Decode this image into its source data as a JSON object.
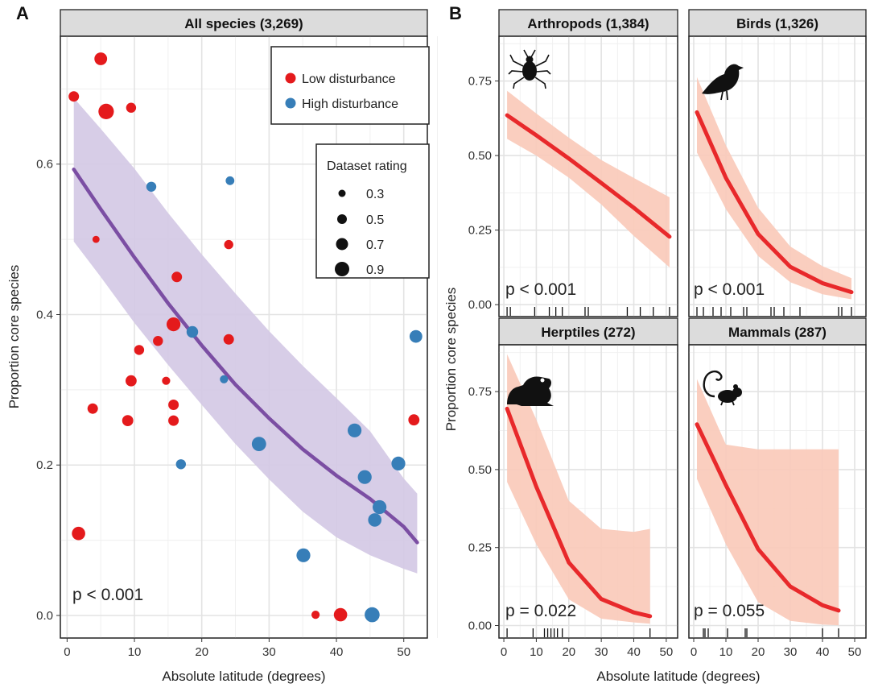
{
  "panel_labels": {
    "a": "A",
    "b": "B"
  },
  "y_axis_title": "Proportion core species",
  "x_axis_title": "Absolute latitude (degrees)",
  "colors": {
    "low": "#e41a1c",
    "high": "#377eb8",
    "fitA": "#7b4ea3",
    "ribbonA": "#d3c8e4",
    "fitB": "#e8292b",
    "ribbonB": "#f9c9b8"
  },
  "legend_color": {
    "items": [
      {
        "label": "Low disturbance",
        "color": "#e41a1c"
      },
      {
        "label": "High disturbance",
        "color": "#377eb8"
      }
    ]
  },
  "legend_size": {
    "title": "Dataset rating",
    "items": [
      {
        "label": "0.3"
      },
      {
        "label": "0.5"
      },
      {
        "label": "0.7"
      },
      {
        "label": "0.9"
      }
    ]
  },
  "chart_data": [
    {
      "type": "scatter",
      "panel": "A",
      "title": "All species (3,269)",
      "xlabel": "Absolute latitude (degrees)",
      "ylabel": "Proportion core species",
      "xlim": [
        -1,
        53.5
      ],
      "ylim": [
        -0.03,
        0.77
      ],
      "xticks": [
        "0",
        "10",
        "20",
        "30",
        "40",
        "50"
      ],
      "yticks": [
        "0.0",
        "0.2",
        "0.4",
        "0.6"
      ],
      "p_label": "p < 0.001",
      "grid": true,
      "legend_position": "top-right",
      "points": [
        {
          "x": 1.0,
          "y": 0.69,
          "g": "low",
          "r": 0.5
        },
        {
          "x": 5.0,
          "y": 0.74,
          "g": "low",
          "r": 0.7
        },
        {
          "x": 5.8,
          "y": 0.67,
          "g": "low",
          "r": 0.95
        },
        {
          "x": 9.5,
          "y": 0.675,
          "g": "low",
          "r": 0.45
        },
        {
          "x": 4.3,
          "y": 0.5,
          "g": "low",
          "r": 0.2
        },
        {
          "x": 12.5,
          "y": 0.57,
          "g": "high",
          "r": 0.45
        },
        {
          "x": 24.2,
          "y": 0.578,
          "g": "high",
          "r": 0.35
        },
        {
          "x": 24.0,
          "y": 0.493,
          "g": "low",
          "r": 0.38
        },
        {
          "x": 16.3,
          "y": 0.45,
          "g": "low",
          "r": 0.5
        },
        {
          "x": 15.8,
          "y": 0.387,
          "g": "low",
          "r": 0.8
        },
        {
          "x": 18.6,
          "y": 0.377,
          "g": "high",
          "r": 0.6
        },
        {
          "x": 10.7,
          "y": 0.353,
          "g": "low",
          "r": 0.45
        },
        {
          "x": 13.5,
          "y": 0.365,
          "g": "low",
          "r": 0.45
        },
        {
          "x": 24.0,
          "y": 0.367,
          "g": "low",
          "r": 0.5
        },
        {
          "x": 51.8,
          "y": 0.371,
          "g": "high",
          "r": 0.7
        },
        {
          "x": 9.5,
          "y": 0.312,
          "g": "low",
          "r": 0.55
        },
        {
          "x": 14.7,
          "y": 0.312,
          "g": "low",
          "r": 0.3
        },
        {
          "x": 23.3,
          "y": 0.314,
          "g": "high",
          "r": 0.3
        },
        {
          "x": 15.8,
          "y": 0.28,
          "g": "low",
          "r": 0.5
        },
        {
          "x": 3.8,
          "y": 0.275,
          "g": "low",
          "r": 0.5
        },
        {
          "x": 9.0,
          "y": 0.259,
          "g": "low",
          "r": 0.55
        },
        {
          "x": 15.8,
          "y": 0.259,
          "g": "low",
          "r": 0.5
        },
        {
          "x": 51.5,
          "y": 0.26,
          "g": "low",
          "r": 0.55
        },
        {
          "x": 42.7,
          "y": 0.246,
          "g": "high",
          "r": 0.8
        },
        {
          "x": 28.5,
          "y": 0.228,
          "g": "high",
          "r": 0.85
        },
        {
          "x": 16.9,
          "y": 0.201,
          "g": "high",
          "r": 0.45
        },
        {
          "x": 49.2,
          "y": 0.202,
          "g": "high",
          "r": 0.8
        },
        {
          "x": 44.2,
          "y": 0.184,
          "g": "high",
          "r": 0.8
        },
        {
          "x": 46.4,
          "y": 0.144,
          "g": "high",
          "r": 0.8
        },
        {
          "x": 45.7,
          "y": 0.127,
          "g": "high",
          "r": 0.75
        },
        {
          "x": 1.7,
          "y": 0.109,
          "g": "low",
          "r": 0.75
        },
        {
          "x": 35.1,
          "y": 0.08,
          "g": "high",
          "r": 0.8
        },
        {
          "x": 36.9,
          "y": 0.001,
          "g": "low",
          "r": 0.3
        },
        {
          "x": 40.6,
          "y": 0.001,
          "g": "low",
          "r": 0.75
        },
        {
          "x": 45.3,
          "y": 0.001,
          "g": "high",
          "r": 0.9
        }
      ],
      "fit": {
        "x": [
          1,
          5,
          10,
          15,
          20,
          25,
          30,
          35,
          40,
          45,
          50,
          52
        ],
        "y": [
          0.593,
          0.54,
          0.476,
          0.415,
          0.359,
          0.307,
          0.262,
          0.221,
          0.186,
          0.155,
          0.118,
          0.097
        ],
        "lower": [
          0.497,
          0.45,
          0.389,
          0.333,
          0.28,
          0.228,
          0.181,
          0.138,
          0.104,
          0.08,
          0.062,
          0.056
        ],
        "upper": [
          0.688,
          0.647,
          0.594,
          0.535,
          0.48,
          0.428,
          0.378,
          0.332,
          0.289,
          0.245,
          0.182,
          0.162
        ]
      }
    },
    {
      "type": "line",
      "panel": "B",
      "title": "Arthropods (1,384)",
      "p_label": "p < 0.001",
      "icon": "beetle-icon",
      "xlim": [
        -1.5,
        53.5
      ],
      "ylim": [
        -0.04,
        0.9
      ],
      "xticks": [
        "0",
        "10",
        "20",
        "30",
        "40",
        "50"
      ],
      "yticks": [
        "0.00",
        "0.25",
        "0.50",
        "0.75"
      ],
      "fit": {
        "x": [
          1,
          10,
          20,
          30,
          40,
          51
        ],
        "y": [
          0.635,
          0.568,
          0.49,
          0.408,
          0.325,
          0.228
        ],
        "lower": [
          0.556,
          0.5,
          0.426,
          0.336,
          0.231,
          0.125
        ],
        "upper": [
          0.717,
          0.641,
          0.56,
          0.485,
          0.425,
          0.36
        ]
      },
      "rug": [
        1,
        2,
        9.5,
        14,
        16,
        18,
        25,
        26,
        38,
        42,
        46,
        51
      ]
    },
    {
      "type": "line",
      "panel": "B",
      "title": "Birds (1,326)",
      "p_label": "p < 0.001",
      "icon": "bird-icon",
      "xlim": [
        -1.5,
        53.5
      ],
      "ylim": [
        -0.04,
        0.9
      ],
      "xticks": [
        "0",
        "10",
        "20",
        "30",
        "40",
        "50"
      ],
      "yticks": [
        "0.00",
        "0.25",
        "0.50",
        "0.75"
      ],
      "fit": {
        "x": [
          1,
          10,
          20,
          30,
          40,
          49
        ],
        "y": [
          0.645,
          0.425,
          0.237,
          0.127,
          0.072,
          0.042
        ],
        "lower": [
          0.51,
          0.32,
          0.163,
          0.075,
          0.035,
          0.018
        ],
        "upper": [
          0.763,
          0.534,
          0.325,
          0.195,
          0.129,
          0.089
        ]
      },
      "rug": [
        1,
        3,
        6,
        8.5,
        11.5,
        15.5,
        16.5,
        24,
        25,
        28,
        33,
        45,
        46,
        49
      ]
    },
    {
      "type": "line",
      "panel": "B",
      "title": "Herptiles (272)",
      "p_label": "p = 0.022",
      "icon": "frog-icon",
      "xlim": [
        -1.5,
        53.5
      ],
      "ylim": [
        -0.04,
        0.9
      ],
      "xticks": [
        "0",
        "10",
        "20",
        "30",
        "40",
        "50"
      ],
      "yticks": [
        "0.00",
        "0.25",
        "0.50",
        "0.75"
      ],
      "fit": {
        "x": [
          1,
          10,
          20,
          30,
          40,
          45
        ],
        "y": [
          0.695,
          0.445,
          0.202,
          0.085,
          0.042,
          0.03
        ],
        "lower": [
          0.46,
          0.26,
          0.084,
          0.022,
          0.01,
          0.006
        ],
        "upper": [
          0.87,
          0.66,
          0.4,
          0.31,
          0.3,
          0.31
        ]
      },
      "rug": [
        1,
        9,
        12.5,
        13.5,
        14.5,
        15.5,
        16.5,
        18,
        45
      ]
    },
    {
      "type": "line",
      "panel": "B",
      "title": "Mammals (287)",
      "p_label": "p = 0.055",
      "icon": "mouse-icon",
      "xlim": [
        -1.5,
        53.5
      ],
      "ylim": [
        -0.04,
        0.9
      ],
      "xticks": [
        "0",
        "10",
        "20",
        "30",
        "40",
        "50"
      ],
      "yticks": [
        "0.00",
        "0.25",
        "0.50",
        "0.75"
      ],
      "fit": {
        "x": [
          1,
          10,
          20,
          30,
          40,
          45
        ],
        "y": [
          0.645,
          0.45,
          0.245,
          0.125,
          0.065,
          0.048
        ],
        "lower": [
          0.47,
          0.26,
          0.075,
          0.015,
          0.003,
          0.001
        ],
        "upper": [
          0.79,
          0.58,
          0.565,
          0.565,
          0.565,
          0.565
        ]
      },
      "rug": [
        3,
        3.5,
        4.5,
        10.5,
        16,
        16.5,
        40,
        45
      ]
    }
  ]
}
